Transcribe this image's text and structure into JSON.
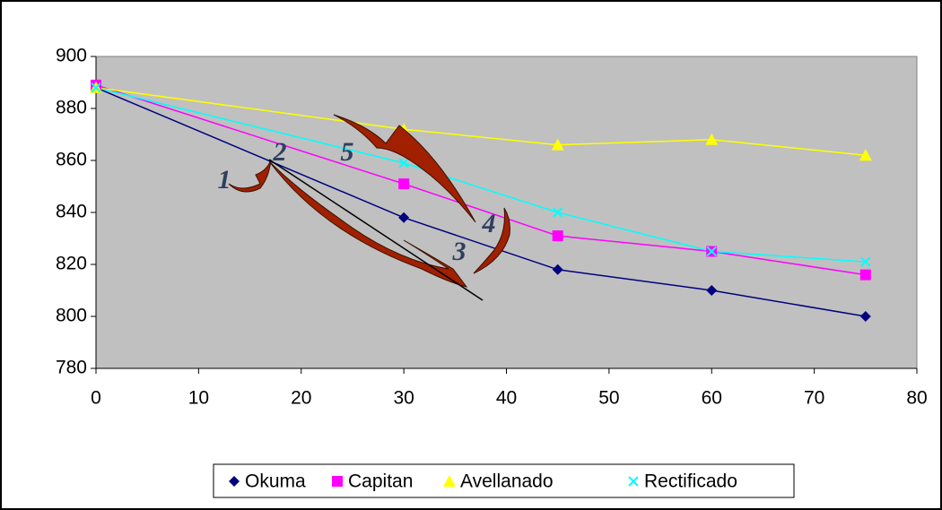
{
  "chart_data": {
    "type": "line",
    "x": [
      0,
      30,
      45,
      60,
      75
    ],
    "series": [
      {
        "name": "Okuma",
        "color": "#000080",
        "marker": "diamond",
        "values": [
          888,
          838,
          818,
          810,
          800
        ]
      },
      {
        "name": "Capitan",
        "color": "#ff00ff",
        "marker": "square",
        "values": [
          889,
          851,
          831,
          825,
          816
        ]
      },
      {
        "name": "Avellanado",
        "color": "#ffff00",
        "marker": "triangle",
        "values": [
          888,
          872,
          866,
          868,
          862
        ]
      },
      {
        "name": "Rectificado",
        "color": "#00ffff",
        "marker": "x",
        "values": [
          888,
          859,
          840,
          825,
          821
        ]
      }
    ],
    "xlim": [
      0,
      80
    ],
    "xticks": [
      0,
      10,
      20,
      30,
      40,
      50,
      60,
      70,
      80
    ],
    "ylim": [
      780,
      900
    ],
    "yticks": [
      780,
      800,
      820,
      840,
      860,
      880,
      900
    ],
    "grid": false,
    "legend": "bottom",
    "annotations": [
      "1",
      "2",
      "3",
      "4",
      "5"
    ]
  }
}
